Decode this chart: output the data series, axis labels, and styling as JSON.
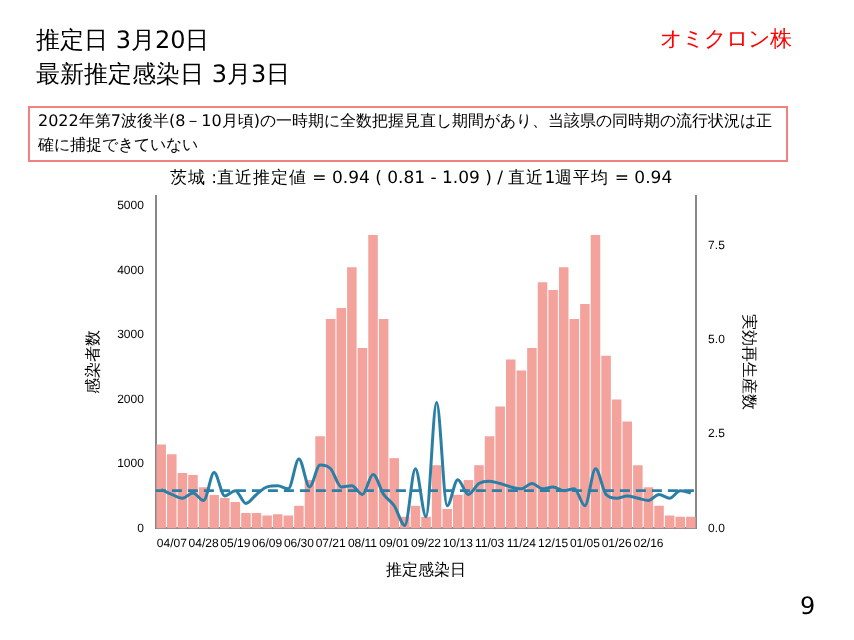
{
  "chart_data": {
    "type": "bar",
    "title": "茨城 :直近推定値 = 0.94 ( 0.81 - 1.09 ) / 直近1週平均 = 0.94",
    "xlabel": "推定感染日",
    "ylabel": "感染者数",
    "y2label": "実効再生産数",
    "categories": [
      null,
      "04/07",
      null,
      null,
      "04/28",
      null,
      null,
      "05/19",
      null,
      null,
      "06/09",
      null,
      null,
      "06/30",
      null,
      null,
      "07/21",
      null,
      null,
      "08/11",
      null,
      null,
      "09/01",
      null,
      null,
      "09/22",
      null,
      null,
      "10/13",
      null,
      null,
      "11/03",
      null,
      null,
      "11/24",
      null,
      null,
      "12/15",
      null,
      null,
      "01/05",
      null,
      null,
      "01/26",
      null,
      null,
      "02/16",
      null,
      null,
      null,
      null
    ],
    "series": [
      {
        "color": "#f4a29c",
        "values": [
          1300,
          1150,
          860,
          830,
          640,
          520,
          470,
          410,
          240,
          240,
          200,
          220,
          200,
          350,
          750,
          1430,
          3250,
          3420,
          4050,
          2800,
          4550,
          3250,
          1090,
          180,
          350,
          180,
          980,
          300,
          520,
          750,
          980,
          1430,
          1890,
          2620,
          2450,
          2800,
          3820,
          3700,
          4050,
          3250,
          3480,
          4550,
          2680,
          2000,
          1660,
          980,
          640,
          350,
          200,
          180,
          180
        ]
      },
      {
        "type": "line",
        "axis": "y2",
        "color": "#2b7fa6",
        "values": [
          1.03,
          0.9,
          0.8,
          0.94,
          0.74,
          1.48,
          0.86,
          1.0,
          0.66,
          0.9,
          1.1,
          1.13,
          1.05,
          1.84,
          1.1,
          1.68,
          1.58,
          1.1,
          1.13,
          0.9,
          1.43,
          0.9,
          0.6,
          0.08,
          1.58,
          0.31,
          3.34,
          0.6,
          1.29,
          0.9,
          1.19,
          1.25,
          1.19,
          1.1,
          1.05,
          1.19,
          1.05,
          1.1,
          1.0,
          1.05,
          0.6,
          1.58,
          0.9,
          0.8,
          0.86,
          0.8,
          0.74,
          0.9,
          0.8,
          1.0,
          0.94
        ]
      }
    ],
    "ylim": [
      0,
      5150
    ],
    "yticks": [
      0,
      1000,
      2000,
      3000,
      4000,
      5000
    ],
    "y2lim": [
      0,
      8.8
    ],
    "y2ticks": [
      {
        "value": 0,
        "label": "0.0"
      },
      {
        "value": 2.5,
        "label": "2.5"
      },
      {
        "value": 5,
        "label": "5.0"
      },
      {
        "value": 7.5,
        "label": "7.5"
      }
    ],
    "ref_lines": [
      {
        "axis": "y2",
        "value": 1,
        "color": "#2b7fa6",
        "line_style": "dashed"
      }
    ],
    "annotations": [
      "推定日 3月20日",
      "最新推定感染日 3月3日",
      "オミクロン株",
      "2022年第7波後半(8－10月頃)の一時期に全数把握見直し期間があり、当該県の同時期の流行状況は正確に捕捉できていない",
      "9"
    ],
    "legend": false,
    "grid": false,
    "marker": "none"
  }
}
